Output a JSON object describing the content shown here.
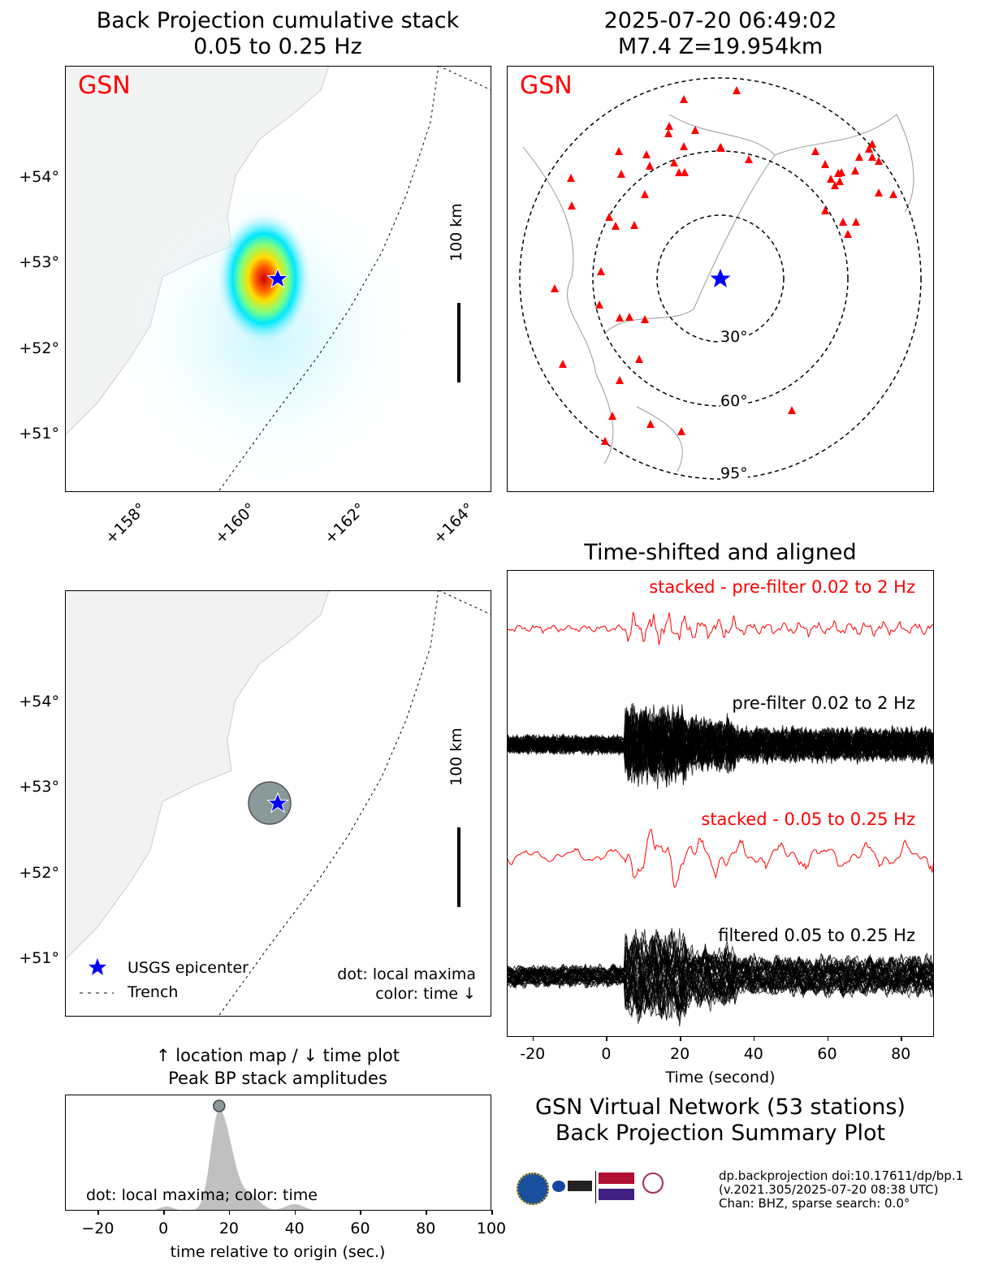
{
  "top_left": {
    "title_line1": "Back Projection cumulative stack",
    "title_line2": "0.05 to 0.25 Hz",
    "network_label": "GSN",
    "scale_label": "100 km",
    "lat_ticks": [
      "+54°",
      "+53°",
      "+52°",
      "+51°"
    ],
    "lon_ticks": [
      "+158°",
      "+160°",
      "+162°",
      "+164°"
    ]
  },
  "top_right": {
    "title_line1": "2025-07-20 06:49:02",
    "title_line2": "M7.4 Z=19.954km",
    "network_label": "GSN",
    "ring_labels": [
      "30°",
      "60°",
      "95°"
    ],
    "station_count": 53
  },
  "bottom_left": {
    "scale_label": "100 km",
    "lat_ticks": [
      "+54°",
      "+53°",
      "+52°",
      "+51°"
    ],
    "legend": {
      "epicenter": "USGS epicenter",
      "trench": "Trench"
    },
    "note_line1": "dot: local maxima",
    "note_line2": "color: time ↓"
  },
  "waveforms": {
    "title": "Time-shifted and aligned",
    "labels": [
      "stacked - pre-filter 0.02 to 2 Hz",
      "pre-filter 0.02 to 2 Hz",
      "stacked - 0.05 to 0.25 Hz",
      "filtered 0.05 to 0.25 Hz"
    ],
    "xlabel": "Time (second)",
    "xticks": [
      "-20",
      "0",
      "20",
      "40",
      "60",
      "80"
    ],
    "xlim": [
      -27,
      89
    ]
  },
  "amplitude": {
    "title_line1": "↑ location map / ↓ time plot",
    "title_line2": "Peak BP stack amplitudes",
    "note": "dot: local maxima; color: time",
    "xlabel": "time relative to origin (sec.)",
    "xticks": [
      "−20",
      "0",
      "20",
      "40",
      "60",
      "80",
      "100"
    ],
    "xlim": [
      -30,
      100
    ],
    "peak_time": 17
  },
  "summary": {
    "line1": "GSN Virtual Network (53 stations)",
    "line2": "Back Projection Summary Plot"
  },
  "footer": {
    "line1": "dp.backprojection doi:10.17611/dp/bp.1",
    "line2": "(v.2021.305/2025-07-20 08:38 UTC)",
    "line3": "Chan: BHZ, sparse search: 0.0°",
    "logos": [
      "NSF",
      "NASA",
      "USGS",
      "GAGE",
      "SAGE",
      "EarthScope Consortium"
    ]
  },
  "colors": {
    "stacked": "#ff0000",
    "station": "#ff0000",
    "epicenter": "#0000ff",
    "peak_dot": "#8a9a9a"
  }
}
